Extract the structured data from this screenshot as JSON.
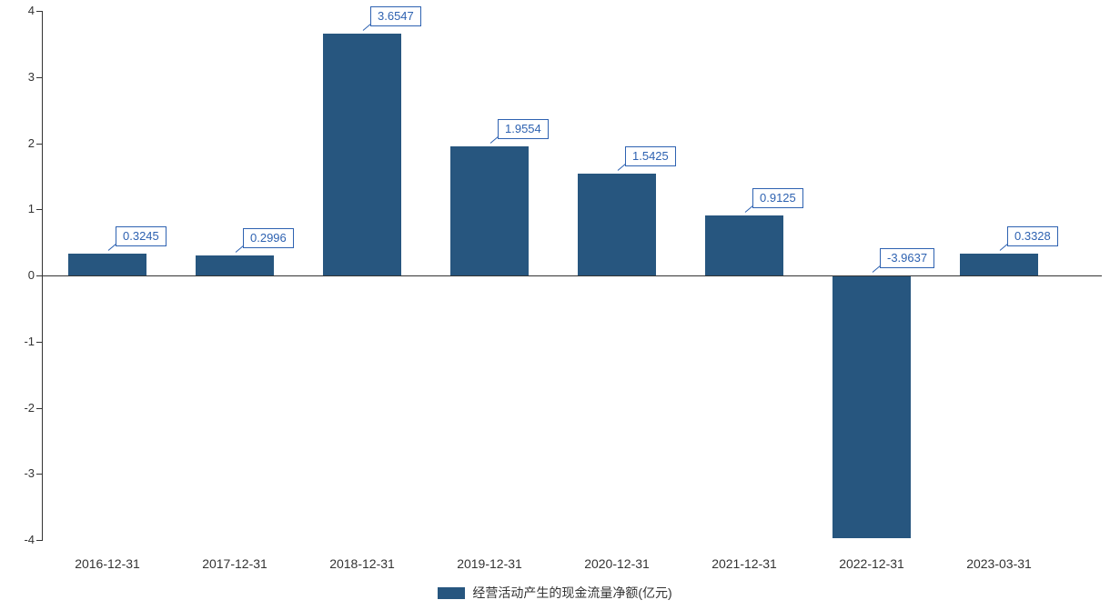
{
  "chart_data": {
    "type": "bar",
    "title": "",
    "xlabel": "",
    "ylabel": "",
    "categories": [
      "2016-12-31",
      "2017-12-31",
      "2018-12-31",
      "2019-12-31",
      "2020-12-31",
      "2021-12-31",
      "2022-12-31",
      "2023-03-31"
    ],
    "values": [
      0.3245,
      0.2996,
      3.6547,
      1.9554,
      1.5425,
      0.9125,
      -3.9637,
      0.3328
    ],
    "labels": [
      "0.3245",
      "0.2996",
      "3.6547",
      "1.9554",
      "1.5425",
      "0.9125",
      "-3.9637",
      "0.3328"
    ],
    "ylim": [
      -4,
      4
    ],
    "y_ticks": [
      4,
      3,
      2,
      1,
      0,
      -1,
      -2,
      -3,
      -4
    ],
    "grid": false,
    "legend_position": "bottom",
    "legend": [
      {
        "label": "经营活动产生的现金流量净额(亿元)",
        "color": "#27567f"
      }
    ],
    "colors": {
      "bar": "#27567f",
      "label_text": "#2e62b1",
      "label_border": "#2e62b1",
      "axis_line": "#333333",
      "tick_text": "#333333",
      "background": "#ffffff"
    }
  }
}
